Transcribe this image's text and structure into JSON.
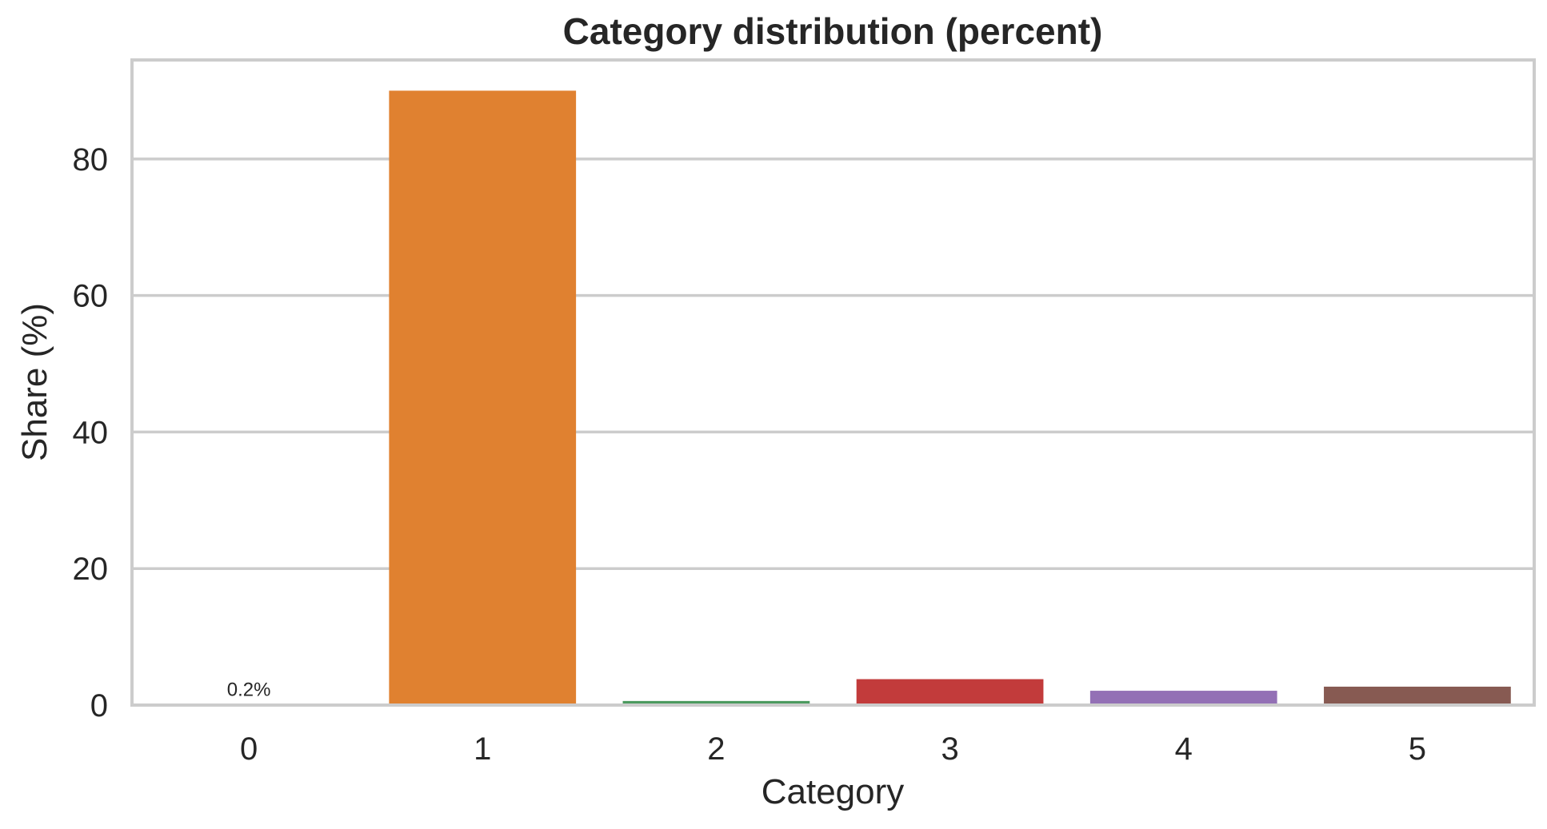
{
  "chart_data": {
    "type": "bar",
    "title": "Category distribution (percent)",
    "xlabel": "Category",
    "ylabel": "Share (%)",
    "categories": [
      "0",
      "1",
      "2",
      "3",
      "4",
      "5"
    ],
    "values": [
      0.2,
      90.0,
      0.6,
      3.8,
      2.1,
      2.7
    ],
    "colors": [
      "#1f77b4",
      "#e08130",
      "#4c9a5f",
      "#c23b3b",
      "#9370b5",
      "#875a52"
    ],
    "data_labels": [
      "0.2%",
      "",
      "",
      "",
      "",
      ""
    ],
    "yticks": [
      0,
      20,
      40,
      60,
      80
    ],
    "ylim": [
      0,
      94.5
    ],
    "grid": true,
    "grid_axis": "y"
  }
}
